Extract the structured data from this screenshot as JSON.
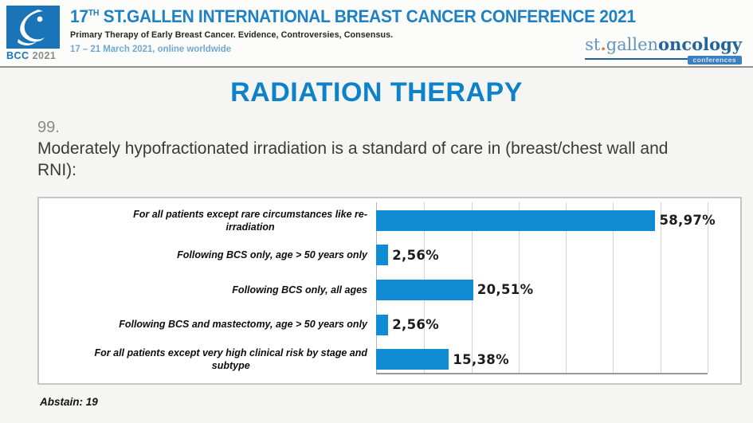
{
  "colors": {
    "header_blue": "#1e81c4",
    "date_blue": "#6fa8d4",
    "logo_blue": "#1a74b8",
    "title_blue": "#0d82c9",
    "bar_blue": "#0f8cd4",
    "logo_light_blue": "#6194be",
    "logo_dark_blue": "#24649c",
    "badge_blue": "#3a7fc1",
    "dot_orange": "#e07b39"
  },
  "header": {
    "logo_square_text": "BCC",
    "logo_square_year": "2021",
    "title_num": "17",
    "title_sup": "TH",
    "title_rest": " ST.GALLEN INTERNATIONAL BREAST CANCER CONFERENCE 2021",
    "subtitle": "Primary Therapy of Early Breast Cancer. Evidence, Controversies, Consensus.",
    "dates": "17 – 21 March 2021, online worldwide",
    "org_logo": {
      "st": "st",
      "dot": ".",
      "gallen": "gallen",
      "oncology": "oncology",
      "badge": "conferences"
    }
  },
  "slide": {
    "title": "RADIATION THERAPY",
    "question_number": "99.",
    "question": "Moderately hypofractionated irradiation is a standard of care in (breast/chest wall and RNI):",
    "abstain_label": "Abstain: 19"
  },
  "chart_data": {
    "type": "bar",
    "orientation": "horizontal",
    "title": "",
    "xlabel": "",
    "ylabel": "",
    "categories": [
      "For all patients except rare circumstances like re-\nirradiation",
      "Following BCS only, age > 50 years only",
      "Following BCS only, all ages",
      "Following BCS and mastectomy, age > 50 years only",
      "For all patients except very high clinical risk by stage and\nsubtype"
    ],
    "values": [
      58.97,
      2.56,
      20.51,
      2.56,
      15.38
    ],
    "value_labels": [
      "58,97%",
      "2,56%",
      "20,51%",
      "2,56%",
      "15,38%"
    ],
    "xlim": [
      0,
      70
    ],
    "gridline_step": 10,
    "grid": true,
    "legend": false,
    "bar_color": "#0f8cd4"
  }
}
